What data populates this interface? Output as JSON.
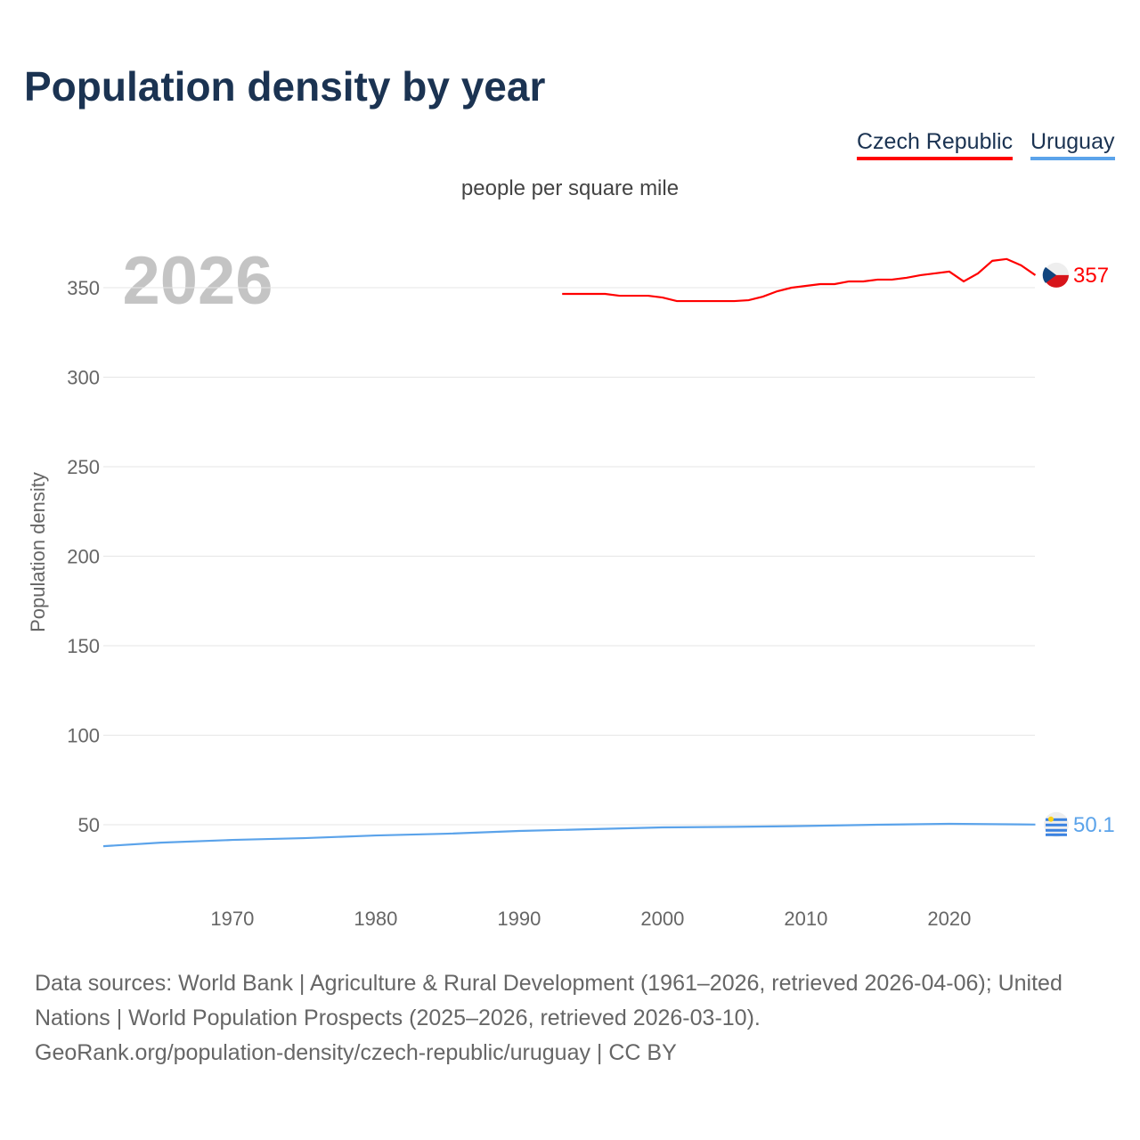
{
  "title": "Population density by year",
  "subtitle": "people per square mile",
  "year_watermark": "2026",
  "source_line1": "Data sources: World Bank | Agriculture & Rural Development (1961–2026, retrieved 2026-04-06); United Nations | World Population Prospects (2025–2026, retrieved 2026-03-10).",
  "source_line2": "GeoRank.org/population-density/czech-republic/uruguay | CC BY",
  "chart_data": {
    "type": "line",
    "title": "Population density by year",
    "ylabel": "Population density",
    "xlabel": "",
    "xlim": [
      1961,
      2026
    ],
    "ylim": [
      25,
      375
    ],
    "yticks": [
      50,
      100,
      150,
      200,
      250,
      300,
      350
    ],
    "xticks": [
      1970,
      1980,
      1990,
      2000,
      2010,
      2020
    ],
    "grid": true,
    "legend": "top-right",
    "series": [
      {
        "name": "Czech Republic",
        "color": "#ff0000",
        "end_label": "357",
        "x": [
          1993,
          1994,
          1995,
          1996,
          1997,
          1998,
          1999,
          2000,
          2001,
          2002,
          2003,
          2004,
          2005,
          2006,
          2007,
          2008,
          2009,
          2010,
          2011,
          2012,
          2013,
          2014,
          2015,
          2016,
          2017,
          2018,
          2019,
          2020,
          2021,
          2022,
          2023,
          2024,
          2025,
          2026
        ],
        "y": [
          346.5,
          346.5,
          346.5,
          346.5,
          345.5,
          345.5,
          345.5,
          344.5,
          342.5,
          342.5,
          342.5,
          342.5,
          342.5,
          343,
          345,
          348,
          350,
          351,
          352,
          352,
          353.5,
          353.5,
          354.5,
          354.5,
          355.5,
          357,
          358,
          359,
          353.5,
          358,
          365,
          366,
          362.5,
          357
        ]
      },
      {
        "name": "Uruguay",
        "color": "#5ba3ea",
        "end_label": "50.1",
        "x": [
          1961,
          1965,
          1970,
          1975,
          1980,
          1985,
          1990,
          1995,
          2000,
          2005,
          2010,
          2015,
          2020,
          2026
        ],
        "y": [
          38,
          40,
          41.5,
          42.5,
          44,
          45,
          46.5,
          47.5,
          48.5,
          48.8,
          49.3,
          50,
          50.5,
          50.1
        ]
      }
    ]
  }
}
